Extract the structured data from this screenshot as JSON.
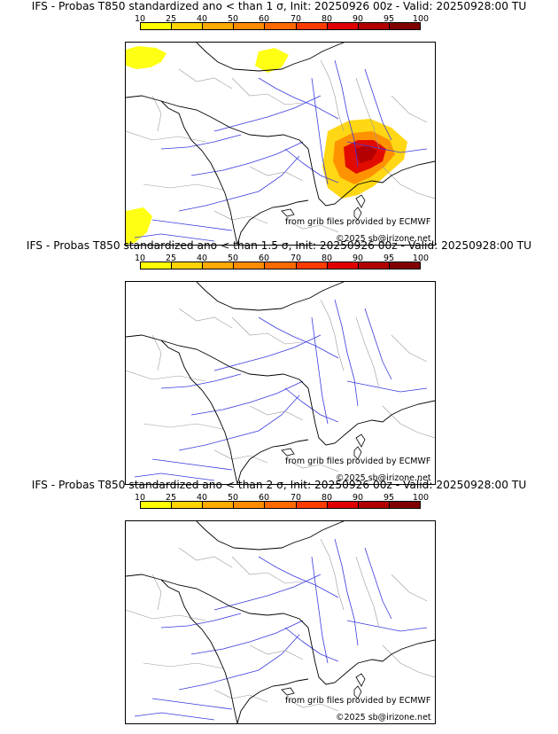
{
  "panels": [
    {
      "title": "IFS - Probas T850  standardized ano < than 1 σ, Init: 20250926 00z - Valid: 20250928:00 TU",
      "has_signal": true
    },
    {
      "title": "IFS - Probas T850  standardized ano < than 1.5 σ, Init: 20250926 00z - Valid: 20250928:00 TU",
      "has_signal": false
    },
    {
      "title": "IFS - Probas T850  standardized ano < than 2 σ, Init: 20250926 00z - Valid: 20250928:00 TU",
      "has_signal": false
    }
  ],
  "colorbar": {
    "ticks": [
      "10",
      "25",
      "40",
      "50",
      "60",
      "70",
      "80",
      "90",
      "95",
      "100"
    ],
    "colors": [
      "#ffff00",
      "#ffd400",
      "#ffaa00",
      "#ff8c00",
      "#ff6a00",
      "#ff3c00",
      "#e00000",
      "#b00000",
      "#800000"
    ]
  },
  "credits": {
    "source": "from grib files provided by ECMWF",
    "copyright": "©2025 sb@irizone.net"
  },
  "colors": {
    "rivers": "#3a3ae0",
    "borders": "#9a9a9a",
    "coast": "#000000"
  }
}
